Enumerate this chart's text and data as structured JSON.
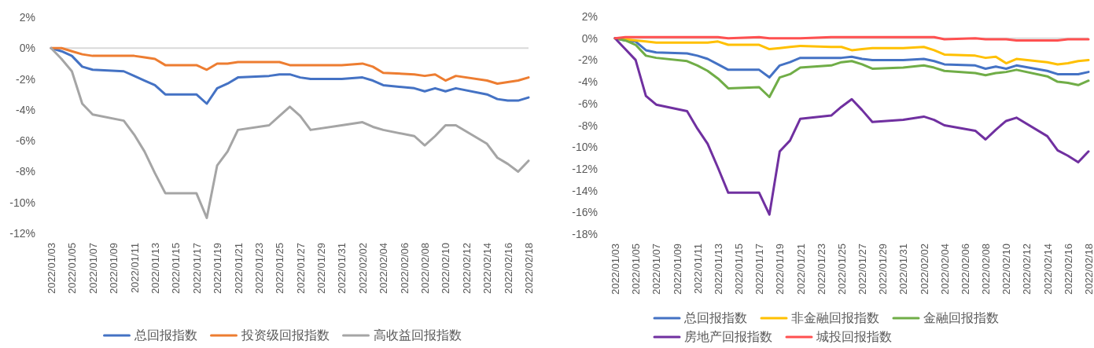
{
  "chart_data": [
    {
      "type": "line",
      "x": [
        "2022-01-03",
        "2022-01-04",
        "2022-01-05",
        "2022-01-06",
        "2022-01-07",
        "2022-01-10",
        "2022-01-11",
        "2022-01-12",
        "2022-01-13",
        "2022-01-14",
        "2022-01-17",
        "2022-01-18",
        "2022-01-19",
        "2022-01-20",
        "2022-01-21",
        "2022-01-24",
        "2022-01-25",
        "2022-01-26",
        "2022-01-27",
        "2022-01-28",
        "2022-01-31",
        "2022-02-02",
        "2022-02-03",
        "2022-02-04",
        "2022-02-07",
        "2022-02-08",
        "2022-02-09",
        "2022-02-10",
        "2022-02-11",
        "2022-02-14",
        "2022-02-15",
        "2022-02-16",
        "2022-02-17",
        "2022-02-18"
      ],
      "xlim": [
        "2022-01-03",
        "2022-02-18"
      ],
      "xticks": [
        {
          "value": "2022-01-03",
          "label": "2022/01/03"
        },
        {
          "value": "2022-01-05",
          "label": "2022/01/05"
        },
        {
          "value": "2022-01-07",
          "label": "2022/01/07"
        },
        {
          "value": "2022-01-09",
          "label": "2022/01/09"
        },
        {
          "value": "2022-01-11",
          "label": "2022/01/11"
        },
        {
          "value": "2022-01-13",
          "label": "2022/01/13"
        },
        {
          "value": "2022-01-15",
          "label": "2022/01/15"
        },
        {
          "value": "2022-01-17",
          "label": "2022/01/17"
        },
        {
          "value": "2022-01-19",
          "label": "2022/01/19"
        },
        {
          "value": "2022-01-21",
          "label": "2022/01/21"
        },
        {
          "value": "2022-01-23",
          "label": "2022/01/23"
        },
        {
          "value": "2022-01-25",
          "label": "2022/01/25"
        },
        {
          "value": "2022-01-27",
          "label": "2022/01/27"
        },
        {
          "value": "2022-01-29",
          "label": "2022/01/29"
        },
        {
          "value": "2022-01-31",
          "label": "2022/01/31"
        },
        {
          "value": "2022-02-02",
          "label": "2022/02/02"
        },
        {
          "value": "2022-02-04",
          "label": "2022/02/04"
        },
        {
          "value": "2022-02-06",
          "label": "2022/02/06"
        },
        {
          "value": "2022-02-08",
          "label": "2022/02/08"
        },
        {
          "value": "2022-02-10",
          "label": "2022/02/10"
        },
        {
          "value": "2022-02-12",
          "label": "2022/02/12"
        },
        {
          "value": "2022-02-14",
          "label": "2022/02/14"
        },
        {
          "value": "2022-02-16",
          "label": "2022/02/16"
        },
        {
          "value": "2022-02-18",
          "label": "2022/02/18"
        }
      ],
      "ylim": [
        -12,
        2
      ],
      "yticks": [
        {
          "value": 2,
          "label": "2%"
        },
        {
          "value": 0,
          "label": "0%"
        },
        {
          "value": -2,
          "label": "-2%"
        },
        {
          "value": -4,
          "label": "-4%"
        },
        {
          "value": -6,
          "label": "-6%"
        },
        {
          "value": -8,
          "label": "-8%"
        },
        {
          "value": -10,
          "label": "-10%"
        },
        {
          "value": -12,
          "label": "-12%"
        }
      ],
      "ref_lines": [
        {
          "axis": "y",
          "value": 0,
          "color": "#d9d9d9"
        }
      ],
      "legend": "bottom",
      "series": [
        {
          "name": "总回报指数",
          "color": "#4472c4",
          "values": [
            0,
            -0.2,
            -0.5,
            -1.2,
            -1.4,
            -1.5,
            -1.8,
            -2.1,
            -2.4,
            -3.0,
            -3.0,
            -3.6,
            -2.6,
            -2.3,
            -1.9,
            -1.8,
            -1.7,
            -1.7,
            -1.9,
            -2.0,
            -2.0,
            -1.9,
            -2.1,
            -2.4,
            -2.6,
            -2.8,
            -2.6,
            -2.8,
            -2.6,
            -3.0,
            -3.3,
            -3.4,
            -3.4,
            -3.2
          ]
        },
        {
          "name": "投资级回报指数",
          "color": "#ed7d31",
          "values": [
            0,
            0,
            -0.2,
            -0.4,
            -0.5,
            -0.5,
            -0.5,
            -0.6,
            -0.7,
            -1.1,
            -1.1,
            -1.4,
            -1.0,
            -1.0,
            -0.9,
            -0.9,
            -0.9,
            -1.1,
            -1.1,
            -1.1,
            -1.1,
            -1.0,
            -1.2,
            -1.6,
            -1.7,
            -1.8,
            -1.7,
            -2.1,
            -1.8,
            -2.1,
            -2.3,
            -2.2,
            -2.1,
            -1.9
          ]
        },
        {
          "name": "高收益回报指数",
          "color": "#a5a5a5",
          "values": [
            0,
            -0.7,
            -1.5,
            -3.6,
            -4.3,
            -4.7,
            -5.6,
            -6.7,
            -8.1,
            -9.4,
            -9.4,
            -11.0,
            -7.6,
            -6.7,
            -5.3,
            -5.0,
            -4.4,
            -3.8,
            -4.4,
            -5.3,
            -5.0,
            -4.8,
            -5.1,
            -5.3,
            -5.7,
            -6.3,
            -5.7,
            -5.0,
            -5.0,
            -6.2,
            -7.1,
            -7.5,
            -8.0,
            -7.3
          ]
        }
      ]
    },
    {
      "type": "line",
      "x": [
        "2022-01-03",
        "2022-01-04",
        "2022-01-05",
        "2022-01-06",
        "2022-01-07",
        "2022-01-10",
        "2022-01-11",
        "2022-01-12",
        "2022-01-13",
        "2022-01-14",
        "2022-01-17",
        "2022-01-18",
        "2022-01-19",
        "2022-01-20",
        "2022-01-21",
        "2022-01-24",
        "2022-01-25",
        "2022-01-26",
        "2022-01-27",
        "2022-01-28",
        "2022-01-31",
        "2022-02-02",
        "2022-02-03",
        "2022-02-04",
        "2022-02-07",
        "2022-02-08",
        "2022-02-09",
        "2022-02-10",
        "2022-02-11",
        "2022-02-14",
        "2022-02-15",
        "2022-02-16",
        "2022-02-17",
        "2022-02-18"
      ],
      "xlim": [
        "2022-01-03",
        "2022-02-18"
      ],
      "xticks": [
        {
          "value": "2022-01-03",
          "label": "2022/01/03"
        },
        {
          "value": "2022-01-05",
          "label": "2022/01/05"
        },
        {
          "value": "2022-01-07",
          "label": "2022/01/07"
        },
        {
          "value": "2022-01-09",
          "label": "2022/01/09"
        },
        {
          "value": "2022-01-11",
          "label": "2022/01/11"
        },
        {
          "value": "2022-01-13",
          "label": "2022/01/13"
        },
        {
          "value": "2022-01-15",
          "label": "2022/01/15"
        },
        {
          "value": "2022-01-17",
          "label": "2022/01/17"
        },
        {
          "value": "2022-01-19",
          "label": "2022/01/19"
        },
        {
          "value": "2022-01-21",
          "label": "2022/01/21"
        },
        {
          "value": "2022-01-23",
          "label": "2022/01/23"
        },
        {
          "value": "2022-01-25",
          "label": "2022/01/25"
        },
        {
          "value": "2022-01-27",
          "label": "2022/01/27"
        },
        {
          "value": "2022-01-29",
          "label": "2022/01/29"
        },
        {
          "value": "2022-01-31",
          "label": "2022/01/31"
        },
        {
          "value": "2022-02-02",
          "label": "2022/02/02"
        },
        {
          "value": "2022-02-04",
          "label": "2022/02/04"
        },
        {
          "value": "2022-02-06",
          "label": "2022/02/06"
        },
        {
          "value": "2022-02-08",
          "label": "2022/02/08"
        },
        {
          "value": "2022-02-10",
          "label": "2022/02/10"
        },
        {
          "value": "2022-02-12",
          "label": "2022/02/12"
        },
        {
          "value": "2022-02-14",
          "label": "2022/02/14"
        },
        {
          "value": "2022-02-16",
          "label": "2022/02/16"
        },
        {
          "value": "2022-02-18",
          "label": "2022/02/18"
        }
      ],
      "ylim": [
        -18,
        2
      ],
      "yticks": [
        {
          "value": 2,
          "label": "2%"
        },
        {
          "value": 0,
          "label": "0%"
        },
        {
          "value": -2,
          "label": "-2%"
        },
        {
          "value": -4,
          "label": "-4%"
        },
        {
          "value": -6,
          "label": "-6%"
        },
        {
          "value": -8,
          "label": "-8%"
        },
        {
          "value": -10,
          "label": "-10%"
        },
        {
          "value": -12,
          "label": "-12%"
        },
        {
          "value": -14,
          "label": "-14%"
        },
        {
          "value": -16,
          "label": "-16%"
        },
        {
          "value": -18,
          "label": "-18%"
        }
      ],
      "ref_lines": [
        {
          "axis": "y",
          "value": 0,
          "color": "#d9d9d9"
        }
      ],
      "legend": "bottom",
      "series": [
        {
          "name": "总回报指数",
          "color": "#4472c4",
          "values": [
            0,
            -0.2,
            -0.3,
            -1.1,
            -1.3,
            -1.4,
            -1.6,
            -1.9,
            -2.4,
            -2.9,
            -2.9,
            -3.6,
            -2.5,
            -2.2,
            -1.8,
            -1.8,
            -1.8,
            -1.7,
            -1.9,
            -2.0,
            -2.0,
            -1.9,
            -2.1,
            -2.4,
            -2.5,
            -2.8,
            -2.6,
            -2.8,
            -2.5,
            -3.0,
            -3.3,
            -3.3,
            -3.3,
            -3.1
          ]
        },
        {
          "name": "非金融回报指数",
          "color": "#ffc000",
          "values": [
            0,
            -0.1,
            -0.2,
            -0.3,
            -0.4,
            -0.4,
            -0.4,
            -0.4,
            -0.3,
            -0.6,
            -0.6,
            -1.0,
            -0.9,
            -0.8,
            -0.7,
            -0.8,
            -0.8,
            -1.1,
            -1.0,
            -0.9,
            -0.9,
            -0.8,
            -1.1,
            -1.5,
            -1.6,
            -1.8,
            -1.7,
            -2.3,
            -1.9,
            -2.2,
            -2.4,
            -2.3,
            -2.1,
            -2.0
          ]
        },
        {
          "name": "金融回报指数",
          "color": "#70ad47",
          "values": [
            0,
            -0.2,
            -0.6,
            -1.6,
            -1.8,
            -2.1,
            -2.5,
            -3.0,
            -3.7,
            -4.6,
            -4.5,
            -5.4,
            -3.6,
            -3.3,
            -2.7,
            -2.5,
            -2.2,
            -2.1,
            -2.4,
            -2.8,
            -2.7,
            -2.5,
            -2.7,
            -3.0,
            -3.2,
            -3.4,
            -3.2,
            -3.1,
            -2.9,
            -3.5,
            -4.0,
            -4.1,
            -4.3,
            -3.9
          ]
        },
        {
          "name": "房地产回报指数",
          "color": "#7030a0",
          "values": [
            0,
            -1.0,
            -2.0,
            -5.3,
            -6.1,
            -6.7,
            -8.3,
            -9.7,
            -11.9,
            -14.2,
            -14.2,
            -16.2,
            -10.4,
            -9.4,
            -7.4,
            -7.1,
            -6.3,
            -5.6,
            -6.6,
            -7.7,
            -7.5,
            -7.2,
            -7.5,
            -8.0,
            -8.5,
            -9.3,
            -8.4,
            -7.6,
            -7.3,
            -9.0,
            -10.3,
            -10.8,
            -11.4,
            -10.4
          ]
        },
        {
          "name": "城投回报指数",
          "color": "#ff5050",
          "values": [
            0,
            0.1,
            0.1,
            0.1,
            0.1,
            0.1,
            0.1,
            0.1,
            0.1,
            0,
            0.1,
            0,
            0,
            0,
            0,
            0.1,
            0.1,
            0.1,
            0.1,
            0.1,
            0.1,
            0.1,
            0.1,
            -0.1,
            0,
            -0.1,
            -0.1,
            -0.1,
            -0.2,
            -0.2,
            -0.2,
            -0.1,
            -0.1,
            -0.1
          ]
        }
      ]
    }
  ]
}
